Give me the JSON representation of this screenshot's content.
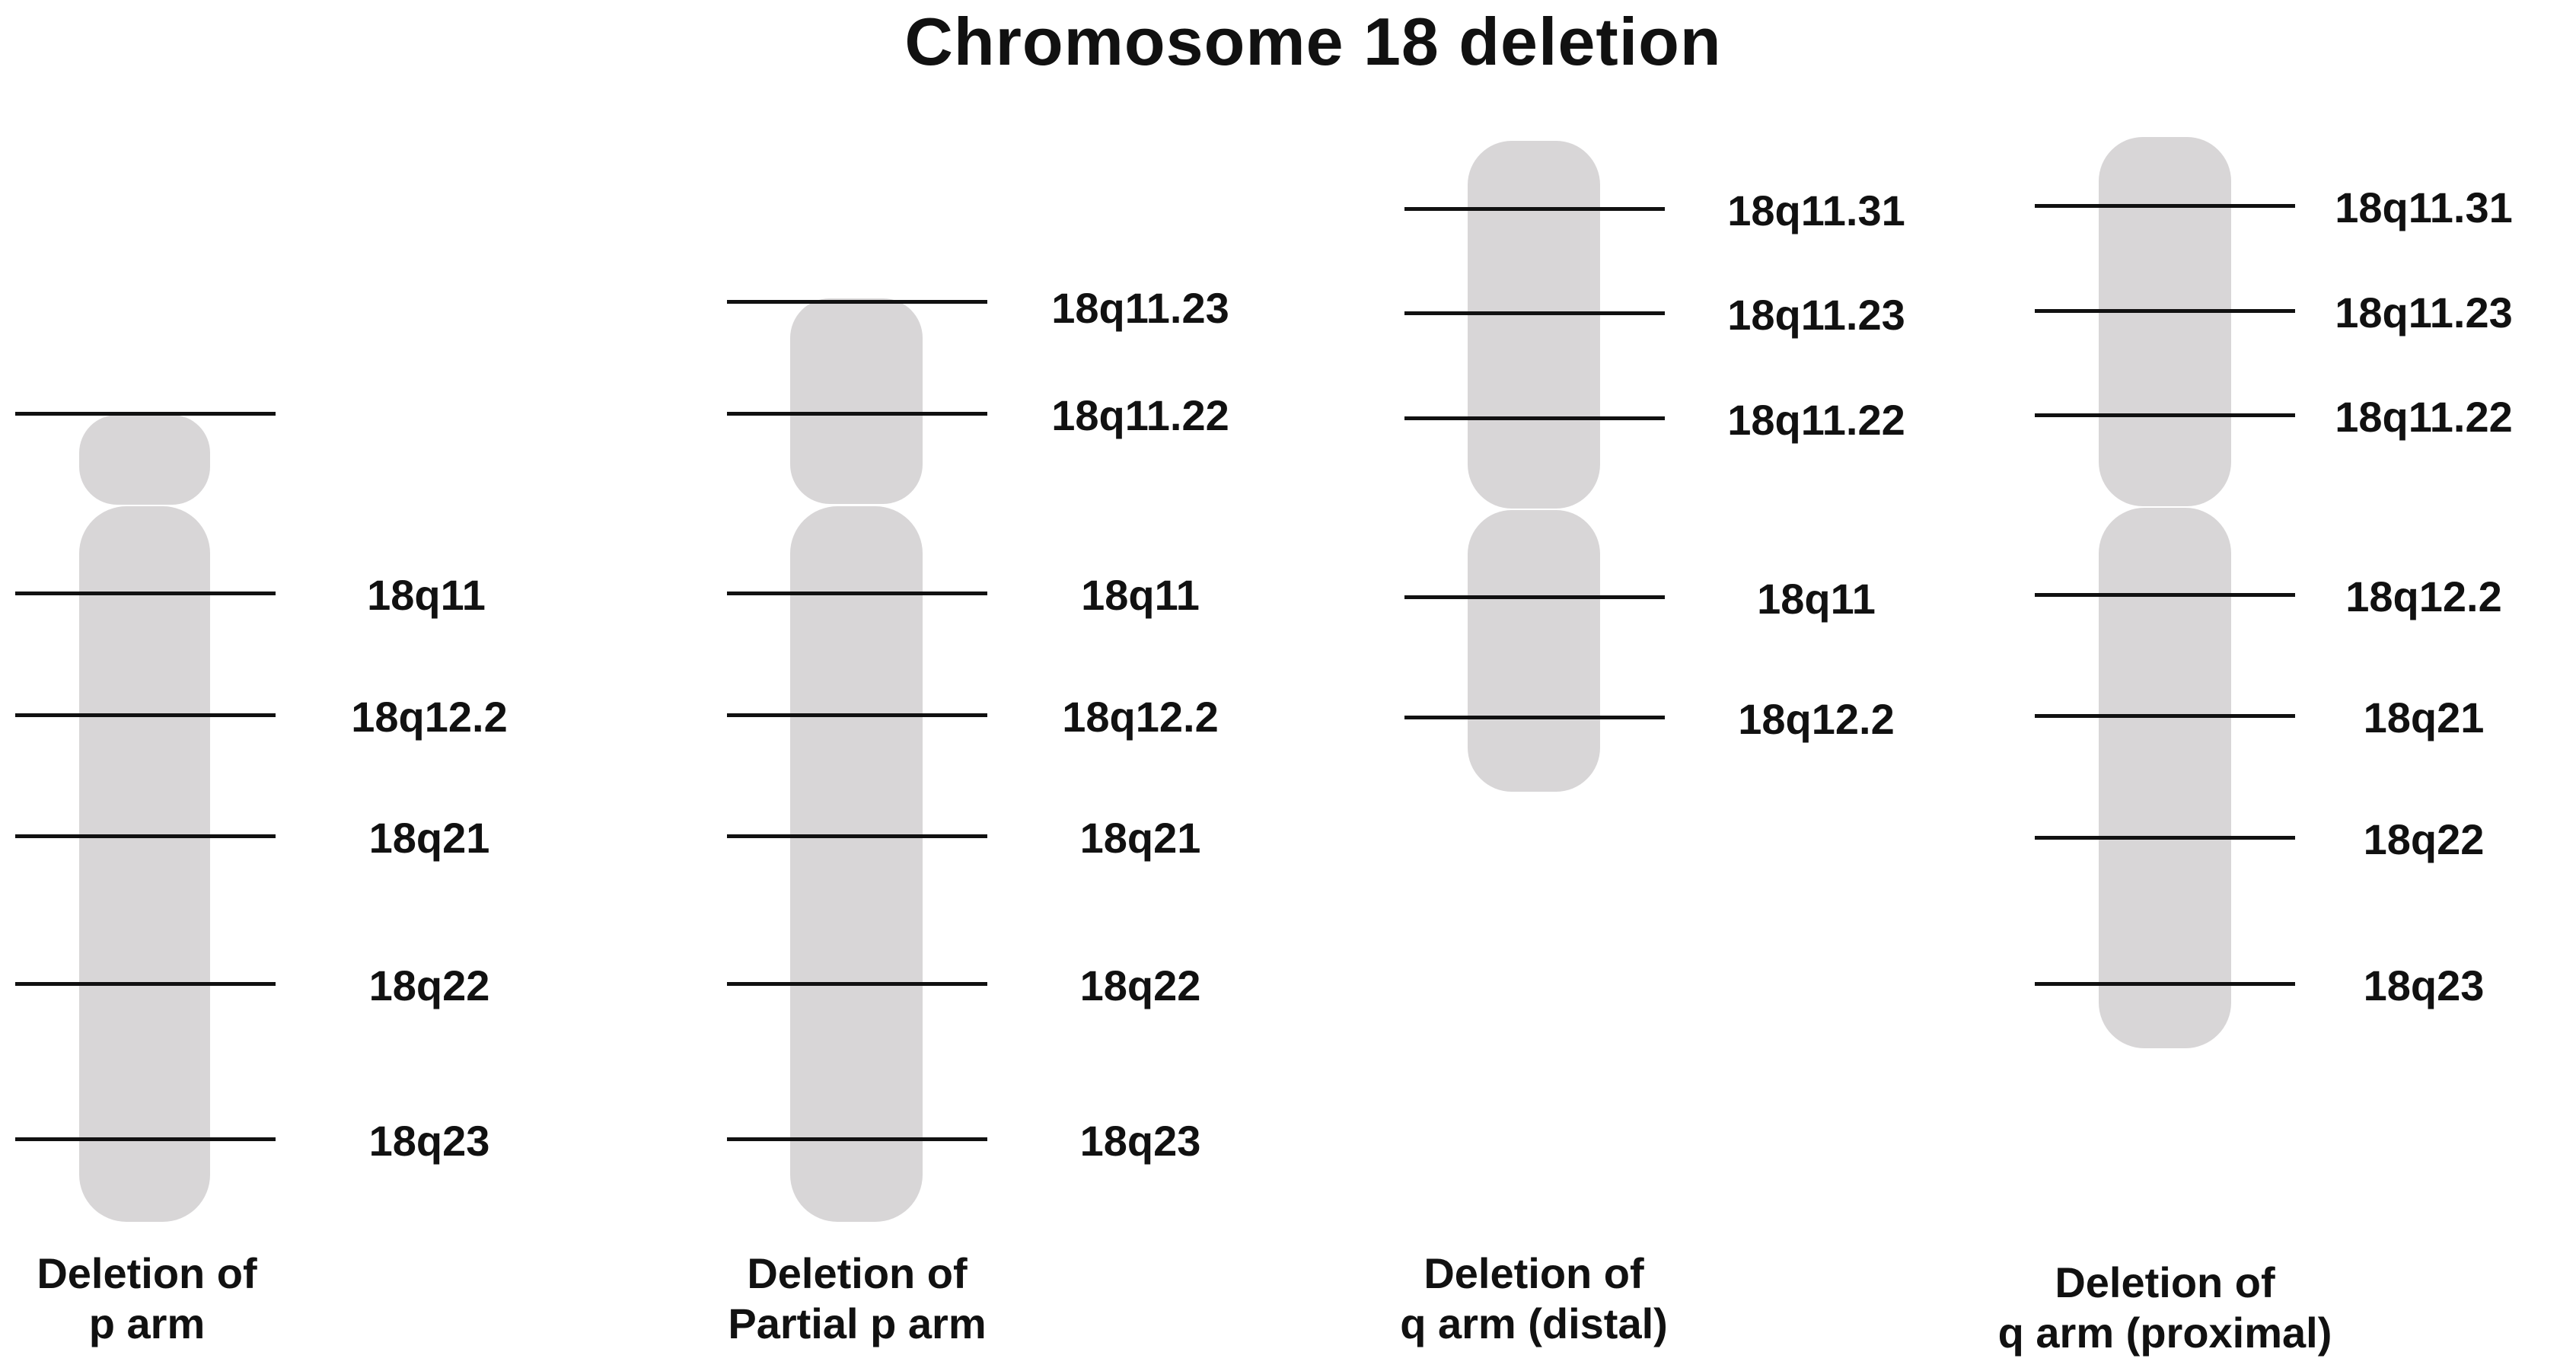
{
  "title": "Chromosome 18 deletion",
  "colors": {
    "chromosome": "#d8d6d7",
    "line": "#111111",
    "text": "#111111",
    "background": "#ffffff"
  },
  "panels": [
    {
      "id": "p-arm",
      "caption": [
        "Deletion of",
        "p arm"
      ],
      "bands": [
        {
          "label": ""
        },
        {
          "label": "18q11"
        },
        {
          "label": "18q12.2"
        },
        {
          "label": "18q21"
        },
        {
          "label": "18q22"
        },
        {
          "label": "18q23"
        }
      ]
    },
    {
      "id": "partial-p-arm",
      "caption": [
        "Deletion of",
        "Partial p arm"
      ],
      "bands": [
        {
          "label": "18q11.23"
        },
        {
          "label": "18q11.22"
        },
        {
          "label": "18q11"
        },
        {
          "label": "18q12.2"
        },
        {
          "label": "18q21"
        },
        {
          "label": "18q22"
        },
        {
          "label": "18q23"
        }
      ]
    },
    {
      "id": "q-arm-distal",
      "caption": [
        "Deletion of",
        "q arm (distal)"
      ],
      "bands": [
        {
          "label": "18q11.31"
        },
        {
          "label": "18q11.23"
        },
        {
          "label": "18q11.22"
        },
        {
          "label": "18q11"
        },
        {
          "label": "18q12.2"
        }
      ]
    },
    {
      "id": "q-arm-proximal",
      "caption": [
        "Deletion of",
        "q arm (proximal)"
      ],
      "bands": [
        {
          "label": "18q11.31"
        },
        {
          "label": "18q11.23"
        },
        {
          "label": "18q11.22"
        },
        {
          "label": "18q12.2"
        },
        {
          "label": "18q21"
        },
        {
          "label": "18q22"
        },
        {
          "label": "18q23"
        }
      ]
    }
  ]
}
